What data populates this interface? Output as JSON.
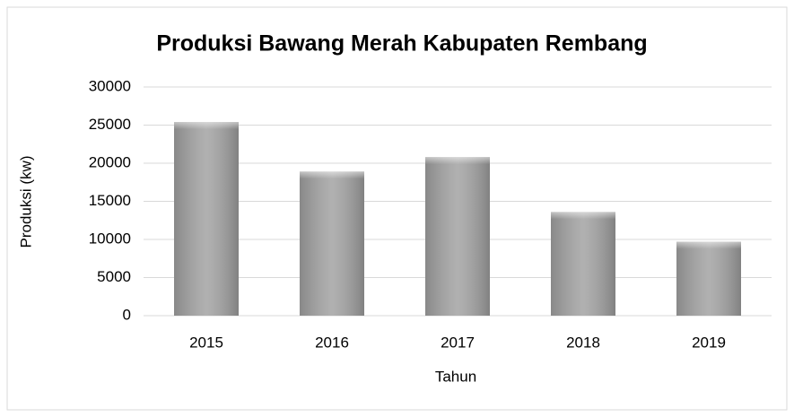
{
  "chart_data": {
    "type": "bar",
    "title": "Produksi Bawang Merah Kabupaten Rembang",
    "x_label": "Tahun",
    "y_label": "Produksi (kw)",
    "categories": [
      "2015",
      "2016",
      "2017",
      "2018",
      "2019"
    ],
    "values": [
      25400,
      18900,
      20800,
      13600,
      9700
    ],
    "color": "#a6a6a6",
    "ylim": [
      0,
      30000
    ],
    "yticks": [
      0,
      5000,
      10000,
      15000,
      20000,
      25000,
      30000
    ],
    "grid": true
  }
}
